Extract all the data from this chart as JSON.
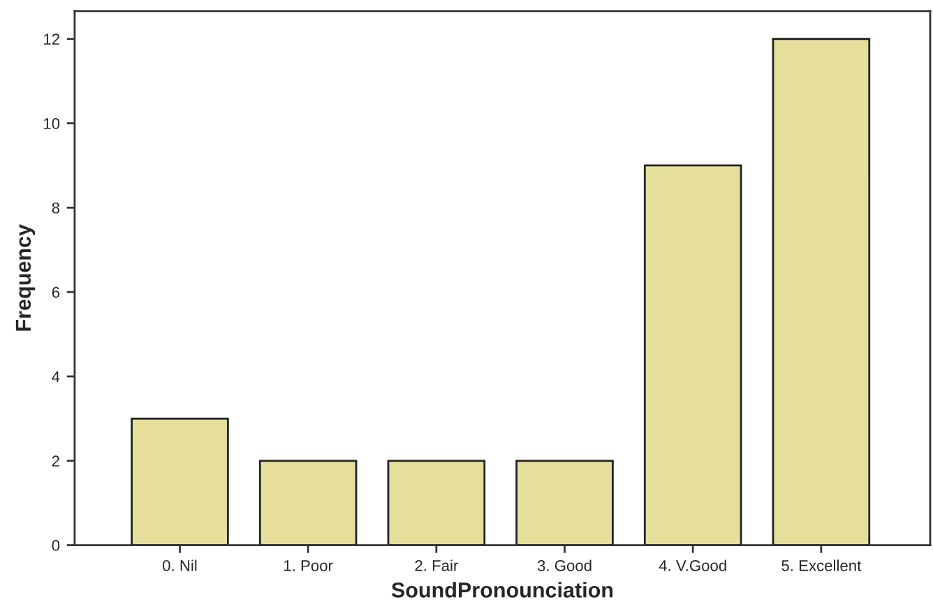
{
  "chart_data": {
    "type": "bar",
    "xlabel": "SoundPronounciation",
    "ylabel": "Frequency",
    "categories": [
      "0. Nil",
      "1. Poor",
      "2. Fair",
      "3. Good",
      "4. V.Good",
      "5. Excellent"
    ],
    "values": [
      3,
      2,
      2,
      2,
      9,
      12
    ],
    "color": "#e6df9c",
    "ylim": [
      0,
      12.66
    ],
    "yticks": [
      0,
      2,
      4,
      6,
      8,
      10,
      12
    ],
    "grid": false,
    "legend": false
  }
}
